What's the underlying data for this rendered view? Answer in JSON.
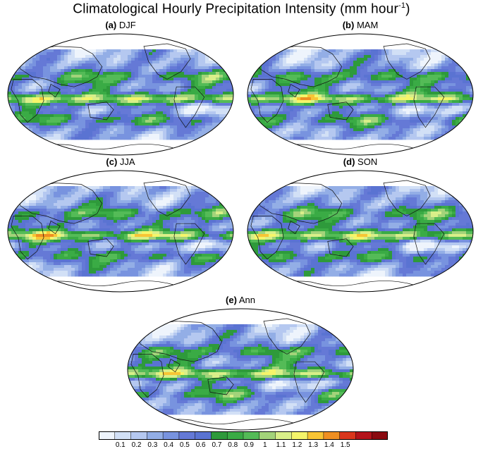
{
  "title": {
    "text": "Climatological Hourly Precipitation Intensity (mm hour",
    "superscript": "-1",
    "close": ")"
  },
  "panels": [
    {
      "id": "a",
      "letter": "(a)",
      "season": "DJF"
    },
    {
      "id": "b",
      "letter": "(b)",
      "season": "MAM"
    },
    {
      "id": "c",
      "letter": "(c)",
      "season": "JJA"
    },
    {
      "id": "d",
      "letter": "(d)",
      "season": "SON"
    },
    {
      "id": "e",
      "letter": "(e)",
      "season": "Ann"
    }
  ],
  "colorbar": {
    "colors": [
      "#eef4fc",
      "#d2e0f6",
      "#b5c8f0",
      "#93aee6",
      "#7893df",
      "#6579d6",
      "#5a73d2",
      "#2e9a3b",
      "#3aab45",
      "#54bb57",
      "#a3d37a",
      "#d9ef89",
      "#f5f56a",
      "#f8c535",
      "#ef8f22",
      "#d9361c",
      "#b3131a",
      "#8a0a10"
    ],
    "labels": [
      "0.1",
      "0.2",
      "0.3",
      "0.4",
      "0.5",
      "0.6",
      "0.7",
      "0.8",
      "0.9",
      "1",
      "1.1",
      "1.2",
      "1.3",
      "1.4",
      "1.5"
    ]
  }
}
